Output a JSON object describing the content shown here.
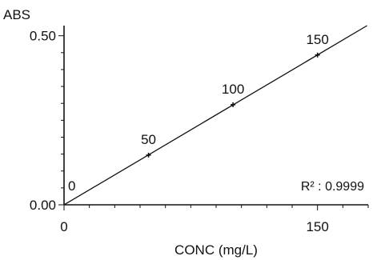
{
  "chart_data": {
    "type": "scatter",
    "xlabel": "CONC (mg/L)",
    "ylabel": "ABS",
    "xlim": [
      0,
      180
    ],
    "ylim": [
      0,
      0.53
    ],
    "x_ticks": [
      {
        "value": 0,
        "label": "0"
      },
      {
        "value": 150,
        "label": "150"
      }
    ],
    "y_ticks": [
      {
        "value": 0.0,
        "label": "0.00"
      },
      {
        "value": 0.5,
        "label": "0.50"
      }
    ],
    "x_minor_step": 15,
    "y_minor_step": 0.05,
    "grid": false,
    "series": [
      {
        "points": [
          {
            "x": 0,
            "y": 0.0,
            "label": "0"
          },
          {
            "x": 50,
            "y": 0.147,
            "label": "50"
          },
          {
            "x": 100,
            "y": 0.296,
            "label": "100"
          },
          {
            "x": 150,
            "y": 0.443,
            "label": "150"
          }
        ]
      }
    ],
    "fit_line": {
      "slope": 0.002955,
      "intercept": 0.0
    },
    "annotation": "R² : 0.9999"
  }
}
